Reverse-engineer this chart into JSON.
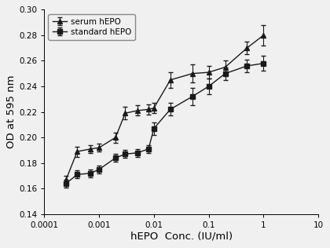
{
  "serum_x": [
    0.00025,
    0.0004,
    0.0007,
    0.001,
    0.002,
    0.003,
    0.005,
    0.008,
    0.01,
    0.02,
    0.05,
    0.1,
    0.2,
    0.5,
    1.0
  ],
  "serum_y": [
    0.167,
    0.189,
    0.191,
    0.192,
    0.2,
    0.219,
    0.221,
    0.222,
    0.223,
    0.245,
    0.25,
    0.251,
    0.255,
    0.27,
    0.28
  ],
  "serum_yerr": [
    0.003,
    0.004,
    0.003,
    0.003,
    0.004,
    0.005,
    0.004,
    0.004,
    0.004,
    0.006,
    0.007,
    0.005,
    0.005,
    0.005,
    0.008
  ],
  "standard_x": [
    0.00025,
    0.0004,
    0.0007,
    0.001,
    0.002,
    0.003,
    0.005,
    0.008,
    0.01,
    0.02,
    0.05,
    0.1,
    0.2,
    0.5,
    1.0
  ],
  "standard_y": [
    0.164,
    0.171,
    0.172,
    0.175,
    0.184,
    0.187,
    0.188,
    0.191,
    0.207,
    0.222,
    0.232,
    0.24,
    0.25,
    0.256,
    0.258
  ],
  "standard_yerr": [
    0.003,
    0.003,
    0.003,
    0.003,
    0.003,
    0.003,
    0.003,
    0.003,
    0.005,
    0.005,
    0.007,
    0.006,
    0.005,
    0.005,
    0.006
  ],
  "xlabel": "hEPO  Conc. (IU/ml)",
  "ylabel": "OD at 595 nm",
  "ylim": [
    0.14,
    0.3
  ],
  "xlim": [
    0.0001,
    10
  ],
  "legend_labels": [
    "serum hEPO",
    "standard hEPO"
  ],
  "line_color": "#1a1a1a",
  "marker_serum": "^",
  "marker_standard": "s",
  "marker_size": 4,
  "linewidth": 1.0,
  "capsize": 2,
  "elinewidth": 0.8,
  "yticks": [
    0.14,
    0.16,
    0.18,
    0.2,
    0.22,
    0.24,
    0.26,
    0.28,
    0.3
  ],
  "background_color": "#f0f0f0",
  "legend_fontsize": 7.5,
  "axis_fontsize": 9.5,
  "tick_fontsize": 7.5
}
